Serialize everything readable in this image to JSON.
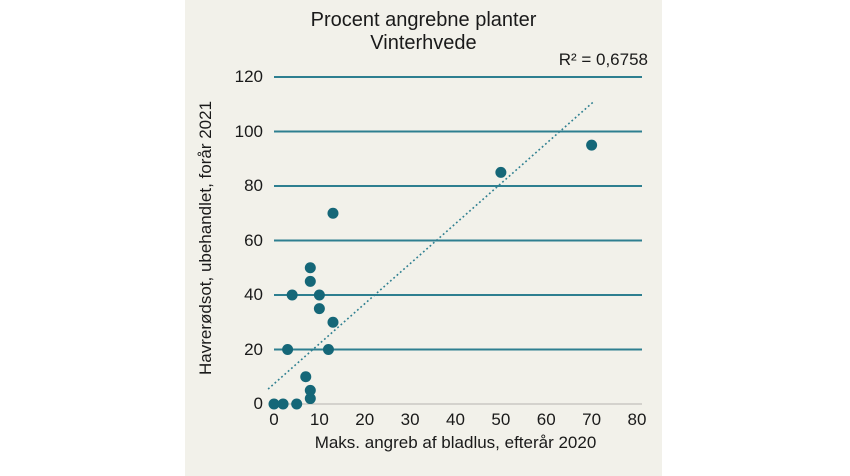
{
  "chart": {
    "title_line1": "Procent angrebne planter",
    "title_line2": "Vinterhvede",
    "r_squared_label": "R² = 0,6758",
    "xlabel": "Maks. angreb af bladlus, efterår 2020",
    "ylabel": "Havrerødsot, ubehandlet, forår 2021"
  },
  "chart_data": {
    "type": "scatter",
    "title": "Procent angrebne planter Vinterhvede",
    "xlabel": "Maks. angreb af bladlus, efterår 2020",
    "ylabel": "Havrerødsot, ubehandlet, forår 2021",
    "xlim": [
      0,
      80
    ],
    "ylim": [
      0,
      120
    ],
    "x_ticks": [
      0,
      10,
      20,
      30,
      40,
      50,
      60,
      70,
      80
    ],
    "y_ticks": [
      0,
      20,
      40,
      60,
      80,
      100,
      120
    ],
    "grid": "horizontal",
    "legend": "none",
    "annotation": "R² = 0,6758",
    "points": [
      [
        0,
        0
      ],
      [
        2,
        0
      ],
      [
        5,
        0
      ],
      [
        8,
        2
      ],
      [
        8,
        5
      ],
      [
        7,
        10
      ],
      [
        3,
        20
      ],
      [
        12,
        20
      ],
      [
        13,
        30
      ],
      [
        10,
        35
      ],
      [
        4,
        40
      ],
      [
        10,
        40
      ],
      [
        8,
        45
      ],
      [
        8,
        50
      ],
      [
        13,
        70
      ],
      [
        50,
        85
      ],
      [
        70,
        95
      ]
    ],
    "trendline": {
      "style": "dotted",
      "slope": 1.47,
      "intercept": 7.4,
      "x_start": -1.3,
      "x_end": 70.3,
      "r_squared": 0.6758
    },
    "colors": {
      "point": "#156778",
      "gridline": "#2e7f90",
      "trendline": "#2e7f90",
      "zero_line": "#c9c8c3",
      "background": "#f2f1ea",
      "text": "#1a1a1a"
    }
  }
}
